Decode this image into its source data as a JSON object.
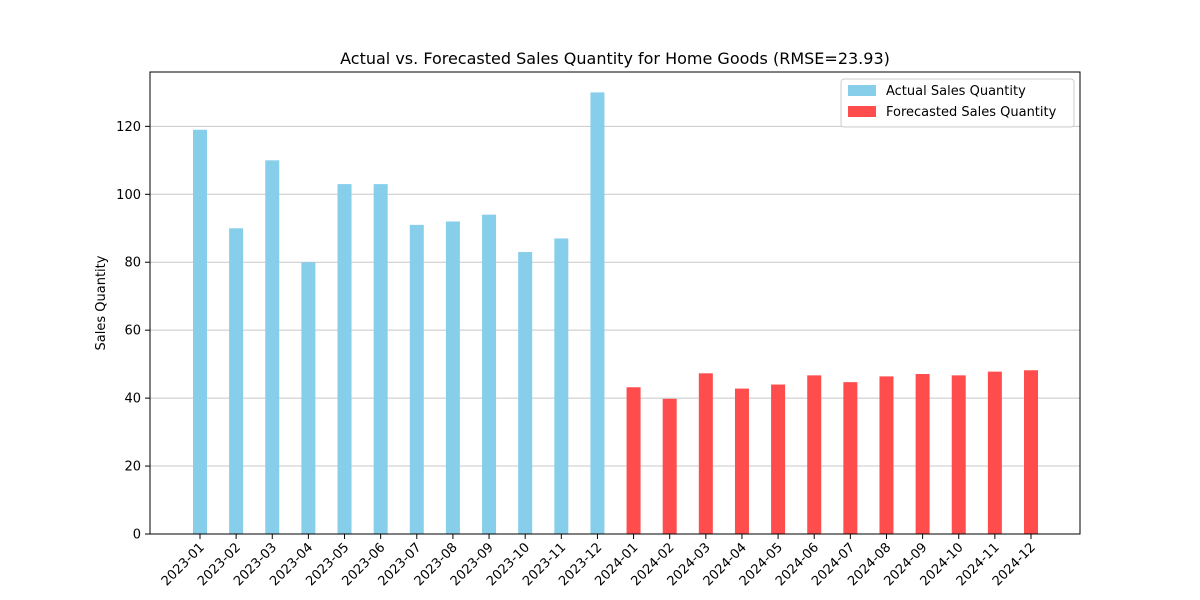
{
  "chart_data": {
    "type": "bar",
    "title": "Actual vs. Forecasted Sales Quantity for Home Goods (RMSE=23.93)",
    "xlabel": "",
    "ylabel": "Sales Quantity",
    "ylim": [
      0,
      136
    ],
    "yticks": [
      0,
      20,
      40,
      60,
      80,
      100,
      120
    ],
    "grid": "y",
    "legend_position": "top-right",
    "categories": [
      "2023-01",
      "2023-02",
      "2023-03",
      "2023-04",
      "2023-05",
      "2023-06",
      "2023-07",
      "2023-08",
      "2023-09",
      "2023-10",
      "2023-11",
      "2023-12",
      "2024-01",
      "2024-02",
      "2024-03",
      "2024-04",
      "2024-05",
      "2024-06",
      "2024-07",
      "2024-08",
      "2024-09",
      "2024-10",
      "2024-11",
      "2024-12"
    ],
    "series": [
      {
        "name": "Actual Sales Quantity",
        "color": "#87ceeb",
        "values": [
          119,
          90,
          110,
          80,
          103,
          103,
          91,
          92,
          94,
          83,
          87,
          130,
          null,
          null,
          null,
          null,
          null,
          null,
          null,
          null,
          null,
          null,
          null,
          null
        ]
      },
      {
        "name": "Forecasted Sales Quantity",
        "color": "#ff4d4d",
        "values": [
          null,
          null,
          null,
          null,
          null,
          null,
          null,
          null,
          null,
          null,
          null,
          null,
          43.2,
          39.8,
          47.3,
          42.8,
          44.0,
          46.7,
          44.7,
          46.4,
          47.1,
          46.7,
          47.8,
          48.2
        ]
      }
    ]
  }
}
